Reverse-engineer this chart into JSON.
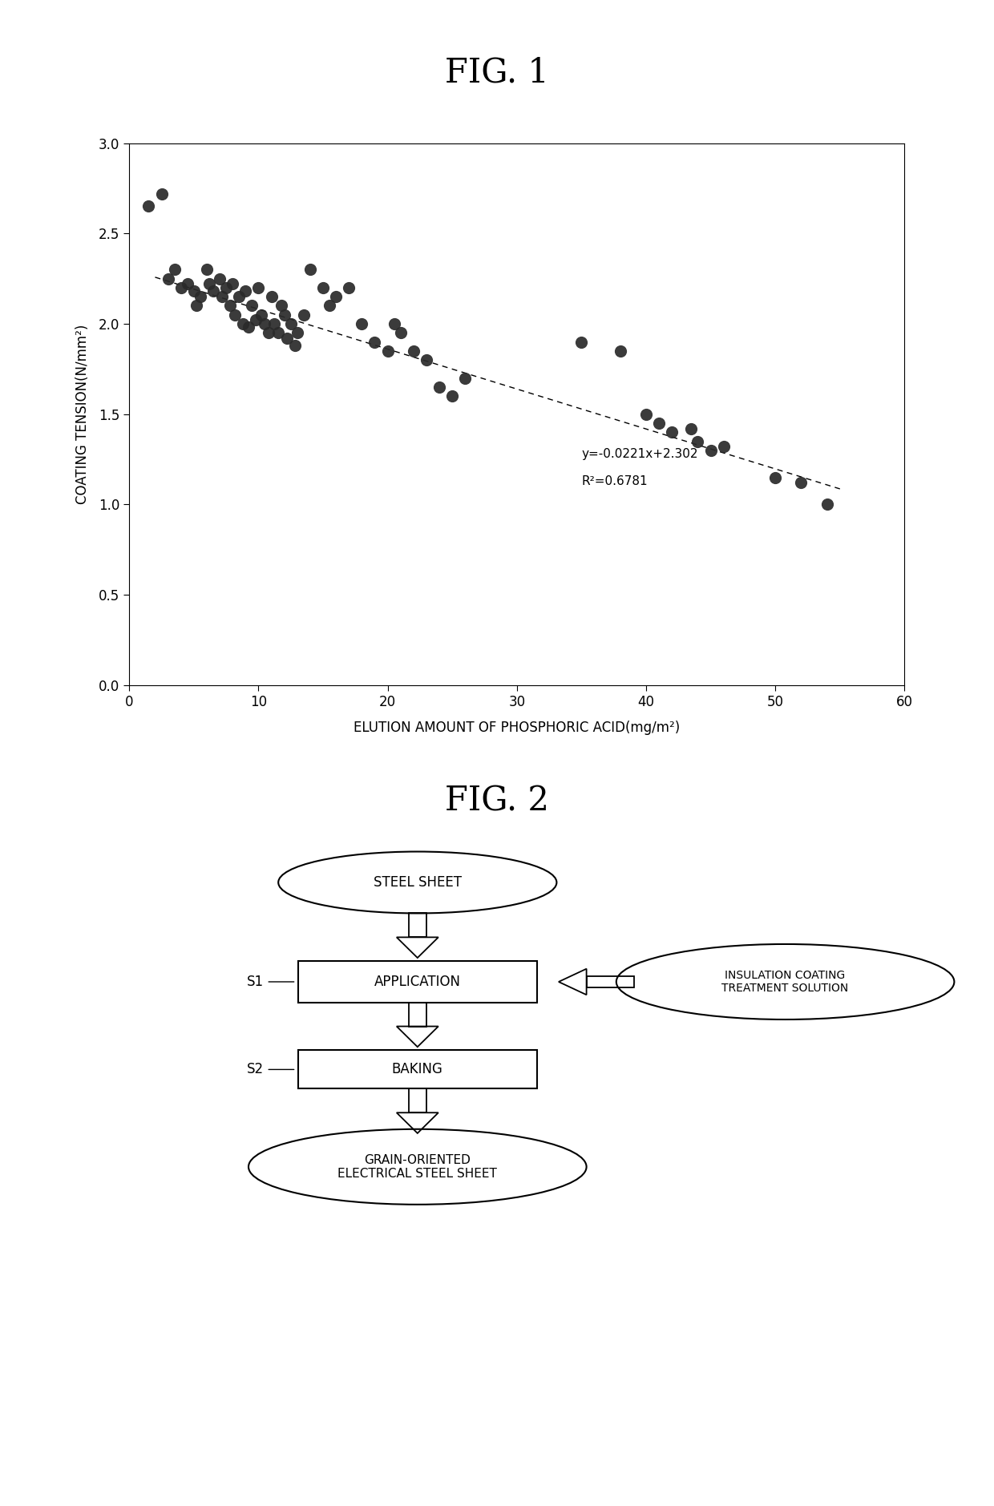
{
  "fig1_title": "FIG. 1",
  "fig2_title": "FIG. 2",
  "xlabel": "ELUTION AMOUNT OF PHOSPHORIC ACID(mg/m²)",
  "ylabel": "COATING TENSION(N/mm²)",
  "xlim": [
    0,
    60
  ],
  "ylim": [
    0.0,
    3.0
  ],
  "xticks": [
    0,
    10,
    20,
    30,
    40,
    50,
    60
  ],
  "yticks": [
    0.0,
    0.5,
    1.0,
    1.5,
    2.0,
    2.5,
    3.0
  ],
  "equation": "y=-0.0221x+2.302",
  "r_squared": "R²=0.6781",
  "slope": -0.0221,
  "intercept": 2.302,
  "line_x_start": 2.0,
  "line_x_end": 55.0,
  "scatter_x": [
    1.5,
    2.5,
    3.0,
    3.5,
    4.0,
    4.5,
    5.0,
    5.2,
    5.5,
    6.0,
    6.2,
    6.5,
    7.0,
    7.2,
    7.5,
    7.8,
    8.0,
    8.2,
    8.5,
    8.8,
    9.0,
    9.2,
    9.5,
    9.8,
    10.0,
    10.2,
    10.5,
    10.8,
    11.0,
    11.2,
    11.5,
    11.8,
    12.0,
    12.2,
    12.5,
    12.8,
    13.0,
    13.5,
    14.0,
    15.0,
    15.5,
    16.0,
    17.0,
    18.0,
    19.0,
    20.0,
    20.5,
    21.0,
    22.0,
    23.0,
    24.0,
    25.0,
    26.0,
    35.0,
    38.0,
    40.0,
    41.0,
    42.0,
    43.5,
    44.0,
    45.0,
    46.0,
    50.0,
    52.0,
    54.0
  ],
  "scatter_y": [
    2.65,
    2.72,
    2.25,
    2.3,
    2.2,
    2.22,
    2.18,
    2.1,
    2.15,
    2.3,
    2.22,
    2.18,
    2.25,
    2.15,
    2.2,
    2.1,
    2.22,
    2.05,
    2.15,
    2.0,
    2.18,
    1.98,
    2.1,
    2.02,
    2.2,
    2.05,
    2.0,
    1.95,
    2.15,
    2.0,
    1.95,
    2.1,
    2.05,
    1.92,
    2.0,
    1.88,
    1.95,
    2.05,
    2.3,
    2.2,
    2.1,
    2.15,
    2.2,
    2.0,
    1.9,
    1.85,
    2.0,
    1.95,
    1.85,
    1.8,
    1.65,
    1.6,
    1.7,
    1.9,
    1.85,
    1.5,
    1.45,
    1.4,
    1.42,
    1.35,
    1.3,
    1.32,
    1.15,
    1.12,
    1.0
  ],
  "dot_color": "#2a2a2a",
  "background_color": "#ffffff",
  "line_color": "#000000",
  "scatter_size": 120,
  "fig1_title_fontsize": 30,
  "fig2_title_fontsize": 30,
  "axis_fontsize": 12,
  "tick_fontsize": 12,
  "annot_fontsize": 11
}
